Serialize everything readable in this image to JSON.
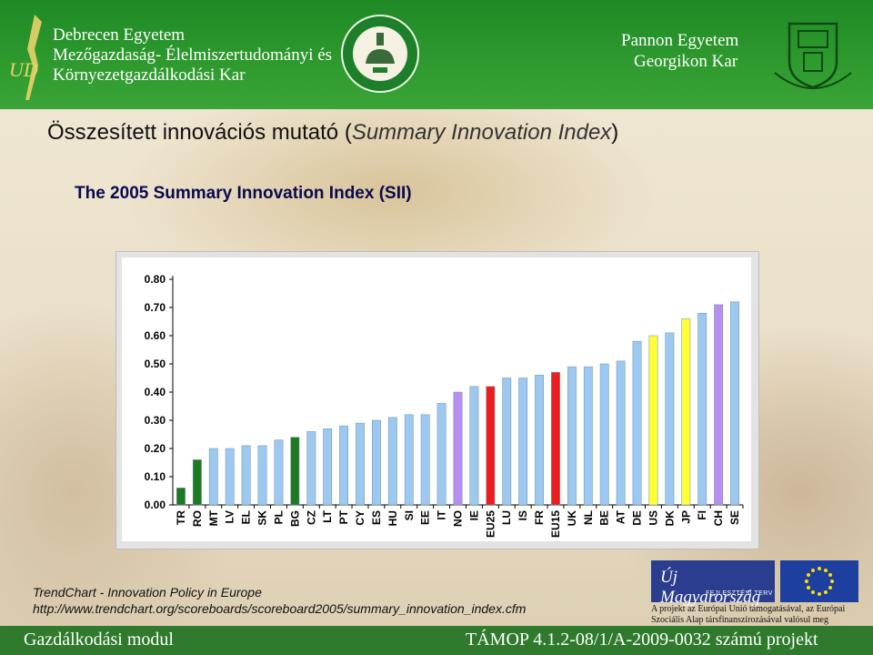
{
  "header": {
    "left_line1": "Debrecen Egyetem",
    "left_line2": "Mezőgazdaság- Élelmiszertudományi és",
    "left_line3": "Környezetgazdálkodási Kar",
    "right_line1": "Pannon Egyetem",
    "right_line2": "Georgikon Kar",
    "logo_text": "UD"
  },
  "title_main": "Összesített innovációs mutató (",
  "title_italic": "Summary Innovation Index",
  "title_close": ")",
  "subtitle": "The 2005 Summary Innovation Index (SII)",
  "source_line1": "TrendChart - Innovation Policy in Europe",
  "source_line2": "http://www.trendchart.org/scoreboards/scoreboard2005/summary_innovation_index.cfm",
  "eu": {
    "logo_text": "Új Magyarország",
    "logo_sub": "FEJLESZTÉSI TERV",
    "note_line1": "A projekt az Európai Unió támogatásával, az Európai",
    "note_line2": "Szociális Alap társfinanszírozásával valósul meg"
  },
  "footer": {
    "left": "Gazdálkodási modul",
    "right": "TÁMOP 4.1.2-08/1/A-2009-0032 számú projekt"
  },
  "colors": {
    "header_green": "#2f9a2e",
    "bar_blue": "#9dc8f0",
    "bar_green": "#1f7a1f",
    "bar_purple": "#b88ef0",
    "bar_red": "#ee1c1c",
    "bar_yellow": "#ffff33"
  },
  "chart_data": {
    "type": "bar",
    "ylim": [
      0,
      0.8
    ],
    "ytick_step": 0.1,
    "categories": [
      "TR",
      "RO",
      "MT",
      "LV",
      "EL",
      "SK",
      "PL",
      "BG",
      "CZ",
      "LT",
      "PT",
      "CY",
      "ES",
      "HU",
      "SI",
      "EE",
      "IT",
      "NO",
      "IE",
      "EU25",
      "LU",
      "IS",
      "FR",
      "EU15",
      "UK",
      "NL",
      "BE",
      "AT",
      "DE",
      "US",
      "DK",
      "JP",
      "FI",
      "CH",
      "SE"
    ],
    "values": [
      0.06,
      0.16,
      0.2,
      0.2,
      0.21,
      0.21,
      0.23,
      0.24,
      0.26,
      0.27,
      0.28,
      0.29,
      0.3,
      0.31,
      0.32,
      0.32,
      0.36,
      0.4,
      0.42,
      0.42,
      0.45,
      0.45,
      0.46,
      0.47,
      0.49,
      0.49,
      0.5,
      0.51,
      0.58,
      0.6,
      0.61,
      0.66,
      0.68,
      0.71,
      0.72
    ],
    "bar_colors": [
      "green",
      "green",
      "blue",
      "blue",
      "blue",
      "blue",
      "blue",
      "green",
      "blue",
      "blue",
      "blue",
      "blue",
      "blue",
      "blue",
      "blue",
      "blue",
      "blue",
      "purple",
      "blue",
      "red",
      "blue",
      "blue",
      "blue",
      "red",
      "blue",
      "blue",
      "blue",
      "blue",
      "blue",
      "yellow",
      "blue",
      "yellow",
      "blue",
      "purple",
      "blue"
    ],
    "grid": false
  }
}
